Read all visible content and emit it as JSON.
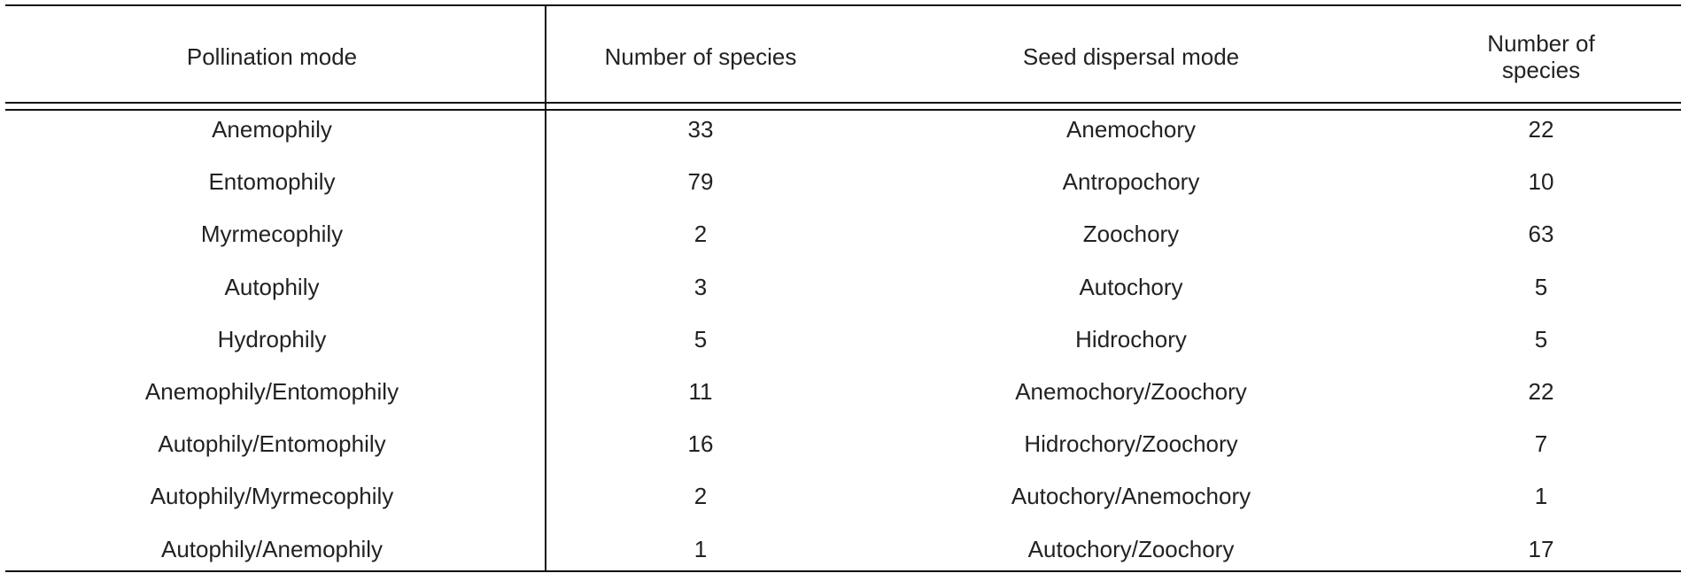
{
  "table": {
    "header": [
      "Pollination mode",
      "Number of species",
      "Seed dispersal mode",
      "Number of species"
    ],
    "rows": [
      [
        "Anemophily",
        33,
        "Anemochory",
        22
      ],
      [
        "Entomophily",
        79,
        "Antropochory",
        10
      ],
      [
        "Myrmecophily",
        2,
        "Zoochory",
        63
      ],
      [
        "Autophily",
        3,
        "Autochory",
        5
      ],
      [
        "Hydrophily",
        5,
        "Hidrochory",
        5
      ],
      [
        "Anemophily/Entomophily",
        11,
        "Anemochory/Zoochory",
        22
      ],
      [
        "Autophily/Entomophily",
        16,
        "Hidrochory/Zoochory",
        7
      ],
      [
        "Autophily/Myrmecophily",
        2,
        "Autochory/Anemochory",
        1
      ],
      [
        "Autophily/Anemophily",
        1,
        "Autochory/Zoochory",
        17
      ]
    ]
  }
}
